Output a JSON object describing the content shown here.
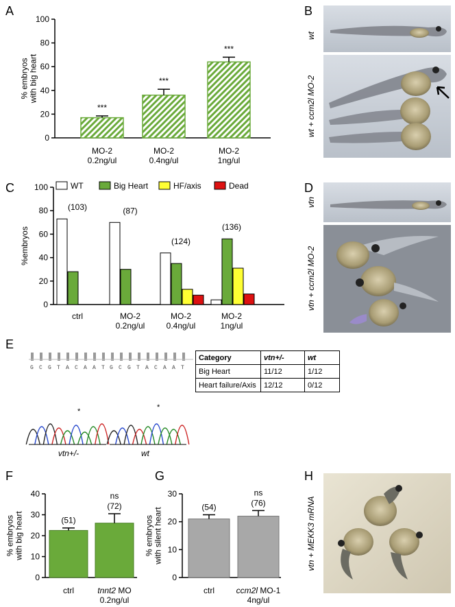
{
  "panels": {
    "A": "A",
    "B": "B",
    "C": "C",
    "D": "D",
    "E": "E",
    "F": "F",
    "G": "G",
    "H": "H"
  },
  "chart_data": [
    {
      "id": "A",
      "type": "bar",
      "categories": [
        [
          "MO-2",
          "0.2ng/ul"
        ],
        [
          "MO-2",
          "0.4ng/ul"
        ],
        [
          "MO-2",
          "1ng/ul"
        ]
      ],
      "values": [
        17,
        36,
        64
      ],
      "errors": [
        1.5,
        5,
        4
      ],
      "annotations": [
        "***",
        "***",
        "***"
      ],
      "ylabel": [
        "% embryos",
        "with big heart"
      ],
      "ylim": [
        0,
        100
      ],
      "yticks": [
        0,
        20,
        40,
        60,
        80,
        100
      ],
      "fill": "hatched-green"
    },
    {
      "id": "C",
      "type": "bar",
      "categories": [
        [
          "ctrl"
        ],
        [
          "MO-2",
          "0.2ng/ul"
        ],
        [
          "MO-2",
          "0.4ng/ul"
        ],
        [
          "MO-2",
          "1ng/ul"
        ]
      ],
      "counts": [
        "(103)",
        "(87)",
        "(124)",
        "(136)"
      ],
      "series": [
        {
          "name": "WT",
          "color": "#ffffff",
          "values": [
            73,
            70,
            44,
            4
          ]
        },
        {
          "name": "Big Heart",
          "color": "#6aaa3a",
          "values": [
            28,
            30,
            35,
            56
          ]
        },
        {
          "name": "HF/axis",
          "color": "#ffff33",
          "values": [
            0,
            0,
            13,
            31
          ]
        },
        {
          "name": "Dead",
          "color": "#dd1111",
          "values": [
            0,
            0,
            8,
            9
          ]
        }
      ],
      "ylabel": "%embryos",
      "ylim": [
        0,
        100
      ],
      "yticks": [
        0,
        20,
        40,
        60,
        80,
        100
      ],
      "legend": "top"
    },
    {
      "id": "F",
      "type": "bar",
      "categories": [
        [
          "ctrl"
        ],
        [
          "tnnt2 MO",
          "0.2ng/ul"
        ]
      ],
      "values": [
        22.5,
        26
      ],
      "errors": [
        1.2,
        4.5
      ],
      "counts": [
        "(51)",
        "(72)"
      ],
      "annotations": [
        "",
        "ns"
      ],
      "ylabel": [
        "% embryos",
        "with big heart"
      ],
      "ylim": [
        0,
        40
      ],
      "yticks": [
        0,
        10,
        20,
        30,
        40
      ],
      "color": "#6aaa3a"
    },
    {
      "id": "G",
      "type": "bar",
      "categories": [
        [
          "ctrl"
        ],
        [
          "ccm2l MO-1",
          "4ng/ul"
        ]
      ],
      "values": [
        21,
        22
      ],
      "errors": [
        1.5,
        2
      ],
      "counts": [
        "(54)",
        "(76)"
      ],
      "annotations": [
        "",
        "ns"
      ],
      "ylabel": [
        "% embryos",
        "with silent heart"
      ],
      "ylim": [
        0,
        30
      ],
      "yticks": [
        0,
        10,
        20,
        30
      ],
      "color": "#a8a8a8"
    }
  ],
  "photos": {
    "B_labels": [
      "wt",
      "wt + ccm2l MO-2"
    ],
    "D_labels": [
      "vtn",
      "vtn + ccm2l MO-2"
    ],
    "H_label": "vtn + MEKK3 mRNA"
  },
  "sequencing": {
    "seq_left": "GCGTACAAT",
    "seq_right": "GCGTACAAT",
    "label_left": "vtn+/-",
    "label_right": "wt",
    "star": "*"
  },
  "table": {
    "headers": [
      "Category",
      "vtn+/-",
      "wt"
    ],
    "rows": [
      [
        "Big Heart",
        "11/12",
        "1/12"
      ],
      [
        "Heart failure/Axis",
        "12/12",
        "0/12"
      ]
    ]
  }
}
